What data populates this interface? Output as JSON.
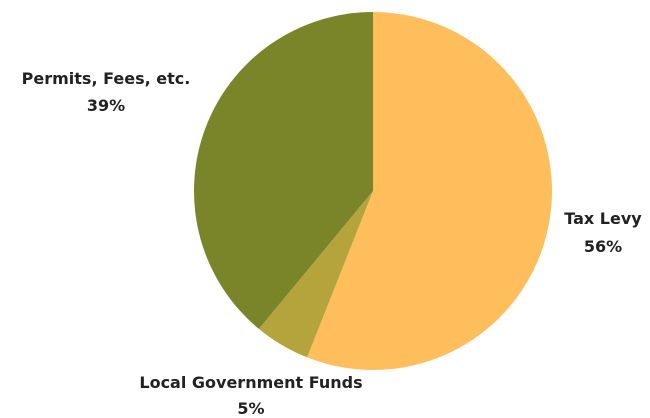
{
  "chart_data": {
    "type": "pie",
    "title": "",
    "slices": [
      {
        "label": "Tax Levy",
        "percent_label": "56%",
        "value": 56,
        "color": "#FDBE5B"
      },
      {
        "label": "Local Government Funds",
        "percent_label": "5%",
        "value": 5,
        "color": "#B5A43C"
      },
      {
        "label": "Permits, Fees, etc.",
        "percent_label": "39%",
        "value": 39,
        "color": "#7A8428"
      }
    ],
    "start_angle": "12 o'clock",
    "direction": "clockwise",
    "legend": "none",
    "data_labels": "outside, name and percent"
  }
}
